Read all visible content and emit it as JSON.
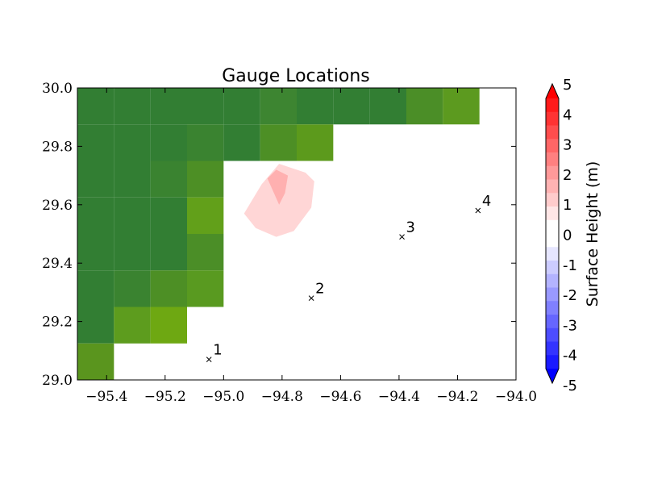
{
  "chart_data": {
    "type": "heatmap",
    "title": "Gauge Locations",
    "xlabel": "",
    "ylabel": "",
    "xlim": [
      -95.5,
      -94.0
    ],
    "ylim": [
      29.0,
      30.0
    ],
    "grid": false,
    "x_ticks": [
      -95.4,
      -95.2,
      -95.0,
      -94.8,
      -94.6,
      -94.4,
      -94.2,
      -94.0
    ],
    "x_tick_labels": [
      "−95.4",
      "−95.2",
      "−95.0",
      "−94.8",
      "−94.6",
      "−94.4",
      "−94.2",
      "−94.0"
    ],
    "y_ticks": [
      29.0,
      29.2,
      29.4,
      29.6,
      29.8,
      30.0
    ],
    "y_tick_labels": [
      "29.0",
      "29.2",
      "29.4",
      "29.6",
      "29.8",
      "30.0"
    ],
    "land_cells": [
      {
        "lon": -95.5,
        "lat": 29.875,
        "w": 0.125,
        "h": 0.125,
        "color": "#327e33"
      },
      {
        "lon": -95.375,
        "lat": 29.875,
        "w": 0.125,
        "h": 0.125,
        "color": "#327e33"
      },
      {
        "lon": -95.25,
        "lat": 29.875,
        "w": 0.125,
        "h": 0.125,
        "color": "#327e33"
      },
      {
        "lon": -95.125,
        "lat": 29.875,
        "w": 0.125,
        "h": 0.125,
        "color": "#327e33"
      },
      {
        "lon": -95.0,
        "lat": 29.875,
        "w": 0.125,
        "h": 0.125,
        "color": "#327e33"
      },
      {
        "lon": -94.875,
        "lat": 29.875,
        "w": 0.125,
        "h": 0.125,
        "color": "#3d8531"
      },
      {
        "lon": -94.75,
        "lat": 29.875,
        "w": 0.125,
        "h": 0.125,
        "color": "#327e33"
      },
      {
        "lon": -94.625,
        "lat": 29.875,
        "w": 0.125,
        "h": 0.125,
        "color": "#327e33"
      },
      {
        "lon": -94.5,
        "lat": 29.875,
        "w": 0.125,
        "h": 0.125,
        "color": "#327e33"
      },
      {
        "lon": -94.375,
        "lat": 29.875,
        "w": 0.125,
        "h": 0.125,
        "color": "#4b8e27"
      },
      {
        "lon": -94.25,
        "lat": 29.875,
        "w": 0.125,
        "h": 0.125,
        "color": "#5c9a1f"
      },
      {
        "lon": -95.5,
        "lat": 29.75,
        "w": 0.125,
        "h": 0.125,
        "color": "#327e33"
      },
      {
        "lon": -95.375,
        "lat": 29.75,
        "w": 0.125,
        "h": 0.125,
        "color": "#327e33"
      },
      {
        "lon": -95.25,
        "lat": 29.75,
        "w": 0.125,
        "h": 0.125,
        "color": "#327e33"
      },
      {
        "lon": -95.125,
        "lat": 29.75,
        "w": 0.125,
        "h": 0.125,
        "color": "#3a8330"
      },
      {
        "lon": -95.0,
        "lat": 29.75,
        "w": 0.125,
        "h": 0.125,
        "color": "#327e33"
      },
      {
        "lon": -94.875,
        "lat": 29.75,
        "w": 0.125,
        "h": 0.125,
        "color": "#4d8f25"
      },
      {
        "lon": -94.75,
        "lat": 29.75,
        "w": 0.125,
        "h": 0.125,
        "color": "#5c9a1c"
      },
      {
        "lon": -95.5,
        "lat": 29.625,
        "w": 0.125,
        "h": 0.125,
        "color": "#327e33"
      },
      {
        "lon": -95.375,
        "lat": 29.625,
        "w": 0.125,
        "h": 0.125,
        "color": "#327e33"
      },
      {
        "lon": -95.25,
        "lat": 29.625,
        "w": 0.125,
        "h": 0.125,
        "color": "#3a8330"
      },
      {
        "lon": -95.125,
        "lat": 29.625,
        "w": 0.125,
        "h": 0.125,
        "color": "#4d8f25"
      },
      {
        "lon": -95.5,
        "lat": 29.5,
        "w": 0.125,
        "h": 0.125,
        "color": "#327e33"
      },
      {
        "lon": -95.375,
        "lat": 29.5,
        "w": 0.125,
        "h": 0.125,
        "color": "#327e33"
      },
      {
        "lon": -95.25,
        "lat": 29.5,
        "w": 0.125,
        "h": 0.125,
        "color": "#327e33"
      },
      {
        "lon": -95.125,
        "lat": 29.5,
        "w": 0.125,
        "h": 0.125,
        "color": "#62a01a"
      },
      {
        "lon": -95.5,
        "lat": 29.375,
        "w": 0.125,
        "h": 0.125,
        "color": "#327e33"
      },
      {
        "lon": -95.375,
        "lat": 29.375,
        "w": 0.125,
        "h": 0.125,
        "color": "#327e33"
      },
      {
        "lon": -95.25,
        "lat": 29.375,
        "w": 0.125,
        "h": 0.125,
        "color": "#327e33"
      },
      {
        "lon": -95.125,
        "lat": 29.375,
        "w": 0.125,
        "h": 0.125,
        "color": "#4b8e27"
      },
      {
        "lon": -95.5,
        "lat": 29.25,
        "w": 0.125,
        "h": 0.125,
        "color": "#327e33"
      },
      {
        "lon": -95.375,
        "lat": 29.25,
        "w": 0.125,
        "h": 0.125,
        "color": "#3a8330"
      },
      {
        "lon": -95.25,
        "lat": 29.25,
        "w": 0.125,
        "h": 0.125,
        "color": "#4d8f25"
      },
      {
        "lon": -95.125,
        "lat": 29.25,
        "w": 0.125,
        "h": 0.125,
        "color": "#599a20"
      },
      {
        "lon": -95.5,
        "lat": 29.125,
        "w": 0.125,
        "h": 0.125,
        "color": "#327e33"
      },
      {
        "lon": -95.375,
        "lat": 29.125,
        "w": 0.125,
        "h": 0.125,
        "color": "#5d9c1e"
      },
      {
        "lon": -95.25,
        "lat": 29.125,
        "w": 0.125,
        "h": 0.125,
        "color": "#6ea812"
      },
      {
        "lon": -95.5,
        "lat": 29.0,
        "w": 0.125,
        "h": 0.125,
        "color": "#5a951e"
      }
    ],
    "surface_contours": [
      {
        "level": "0-0.5",
        "color": "#ffd6d6",
        "points": [
          [
            -94.93,
            29.57
          ],
          [
            -94.87,
            29.67
          ],
          [
            -94.81,
            29.74
          ],
          [
            -94.72,
            29.71
          ],
          [
            -94.69,
            29.68
          ],
          [
            -94.7,
            29.59
          ],
          [
            -94.76,
            29.51
          ],
          [
            -94.82,
            29.49
          ],
          [
            -94.89,
            29.52
          ]
        ]
      },
      {
        "level": "0.5-1",
        "color": "#ffb0b0",
        "points": [
          [
            -94.85,
            29.69
          ],
          [
            -94.82,
            29.72
          ],
          [
            -94.78,
            29.7
          ],
          [
            -94.79,
            29.64
          ],
          [
            -94.81,
            29.6
          ]
        ]
      }
    ],
    "gauges": [
      {
        "label": "1",
        "lon": -95.05,
        "lat": 29.07
      },
      {
        "label": "2",
        "lon": -94.7,
        "lat": 29.28
      },
      {
        "label": "3",
        "lon": -94.39,
        "lat": 29.49
      },
      {
        "label": "4",
        "lon": -94.13,
        "lat": 29.58
      }
    ],
    "colorbar": {
      "label": "Surface Height (m)",
      "min": -5,
      "max": 5,
      "ticks": [
        "-5",
        "-4",
        "-3",
        "-2",
        "-1",
        "0",
        "1",
        "2",
        "3",
        "4",
        "5"
      ],
      "colors": [
        "#0000ff",
        "#1a1aff",
        "#3333ff",
        "#4d4dff",
        "#6666ff",
        "#8080ff",
        "#9999ff",
        "#b3b3ff",
        "#ccccff",
        "#e6e6ff",
        "#ffffff",
        "#ffffff",
        "#ffe6e6",
        "#ffcccc",
        "#ffb3b3",
        "#ff9999",
        "#ff8080",
        "#ff6666",
        "#ff4d4d",
        "#ff3333",
        "#ff1a1a",
        "#ff0000"
      ]
    }
  }
}
